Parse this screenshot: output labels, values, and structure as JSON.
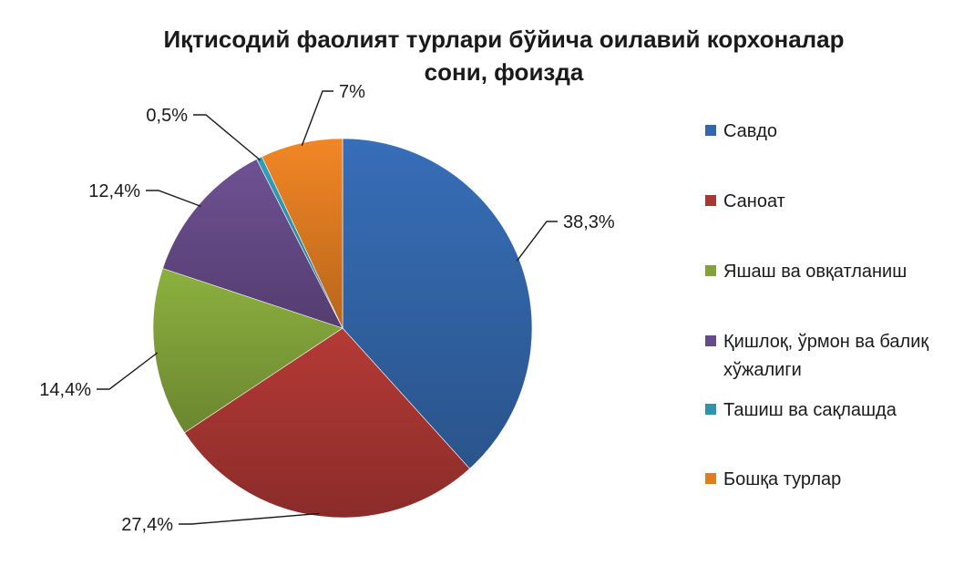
{
  "chart_data": {
    "type": "pie",
    "title": [
      "Иқтисодий фаолият турлари бўйича оилавий корхоналар",
      "сони, фоизда"
    ],
    "legend_position": "right",
    "series": [
      {
        "name": "Савдо",
        "value": 38.3,
        "label": "38,3%",
        "color": "#3366aa",
        "legend_lines": [
          "Савдо"
        ]
      },
      {
        "name": "Саноат",
        "value": 27.4,
        "label": "27,4%",
        "color": "#a83632",
        "legend_lines": [
          "Саноат"
        ]
      },
      {
        "name": "Яшаш ва овқатланиш",
        "value": 14.4,
        "label": "14,4%",
        "color": "#82a33a",
        "legend_lines": [
          "Яшаш ва овқатланиш"
        ]
      },
      {
        "name": "Қишлоқ, ўрмон ва балиқ хўжалиги",
        "value": 12.4,
        "label": "12,4%",
        "color": "#664b88",
        "legend_lines": [
          "Қишлоқ, ўрмон ва балиқ",
          "хўжалиги"
        ]
      },
      {
        "name": "Ташиш ва сақлашда",
        "value": 0.5,
        "label": "0,5%",
        "color": "#2f93ad",
        "legend_lines": [
          "Ташиш ва сақлашда"
        ]
      },
      {
        "name": "Бошқа турлар",
        "value": 7.0,
        "label": "7%",
        "color": "#e07c22",
        "legend_lines": [
          "Бошқа турлар"
        ]
      }
    ]
  }
}
